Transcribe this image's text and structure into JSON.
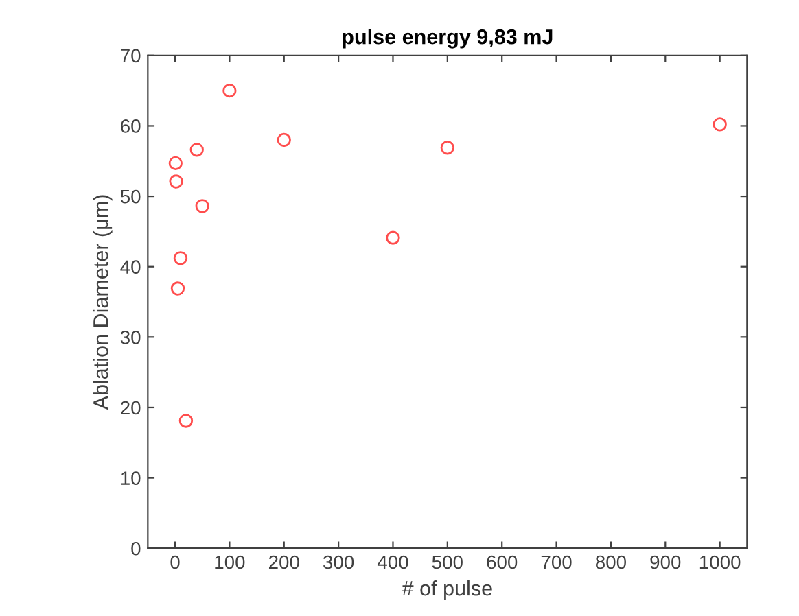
{
  "chart_data": {
    "type": "scatter",
    "title": "pulse energy 9,83 mJ",
    "xlabel": "# of pulse",
    "ylabel": "Ablation Diameter (μm)",
    "x": [
      1,
      2,
      5,
      10,
      20,
      40,
      50,
      100,
      200,
      400,
      500,
      1000
    ],
    "series": [
      {
        "color": "#ff4d4d",
        "values": [
          54.7,
          52.1,
          36.9,
          41.2,
          18.1,
          56.6,
          48.6,
          65.0,
          58.0,
          44.1,
          56.9,
          60.2
        ]
      }
    ],
    "marker": "circle",
    "xlim": [
      -50,
      1050
    ],
    "ylim": [
      0,
      70
    ],
    "xticks": [
      0,
      100,
      200,
      300,
      400,
      500,
      600,
      700,
      800,
      900,
      1000
    ],
    "yticks": [
      0,
      10,
      20,
      30,
      40,
      50,
      60,
      70
    ],
    "grid": false,
    "legend": false
  }
}
